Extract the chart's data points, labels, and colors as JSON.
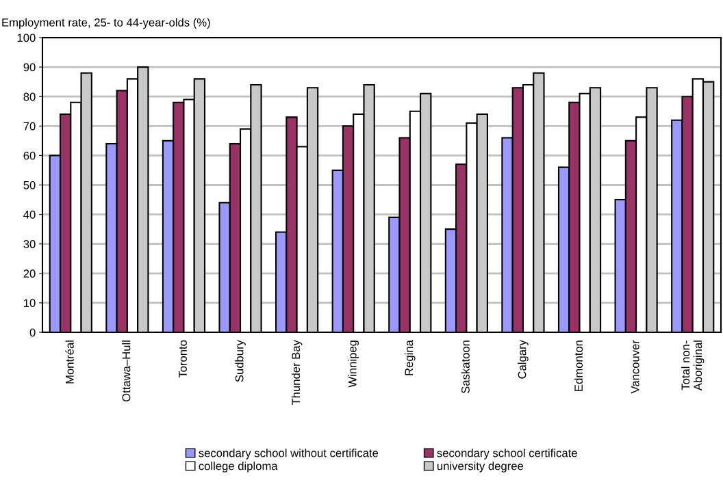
{
  "chart_data": {
    "type": "bar",
    "ylabel": "Employment rate, 25- to 44-year-olds (%)",
    "categories": [
      "Montréal",
      "Ottawa–Hull",
      "Toronto",
      "Sudbury",
      "Thunder Bay",
      "Winnipeg",
      "Regina",
      "Saskatoon",
      "Calgary",
      "Edmonton",
      "Vancouver",
      "Total non-\nAboriginal"
    ],
    "series": [
      {
        "name": "secondary school without certificate",
        "color": "#9999ff",
        "values": [
          60,
          64,
          65,
          44,
          34,
          55,
          39,
          35,
          66,
          56,
          45,
          72
        ]
      },
      {
        "name": "secondary school certificate",
        "color": "#993366",
        "values": [
          74,
          82,
          78,
          64,
          73,
          70,
          66,
          57,
          83,
          78,
          65,
          80
        ]
      },
      {
        "name": "college diploma",
        "color": "#ffffff",
        "values": [
          78,
          86,
          79,
          69,
          63,
          74,
          75,
          71,
          84,
          81,
          73,
          86
        ]
      },
      {
        "name": "university degree",
        "color": "#c8c8c8",
        "values": [
          88,
          90,
          86,
          84,
          83,
          84,
          81,
          74,
          88,
          83,
          83,
          85
        ]
      }
    ],
    "ylim": [
      0,
      100
    ],
    "yticks": [
      0,
      10,
      20,
      30,
      40,
      50,
      60,
      70,
      80,
      90,
      100
    ],
    "grid": "y",
    "legend": "bottom"
  }
}
